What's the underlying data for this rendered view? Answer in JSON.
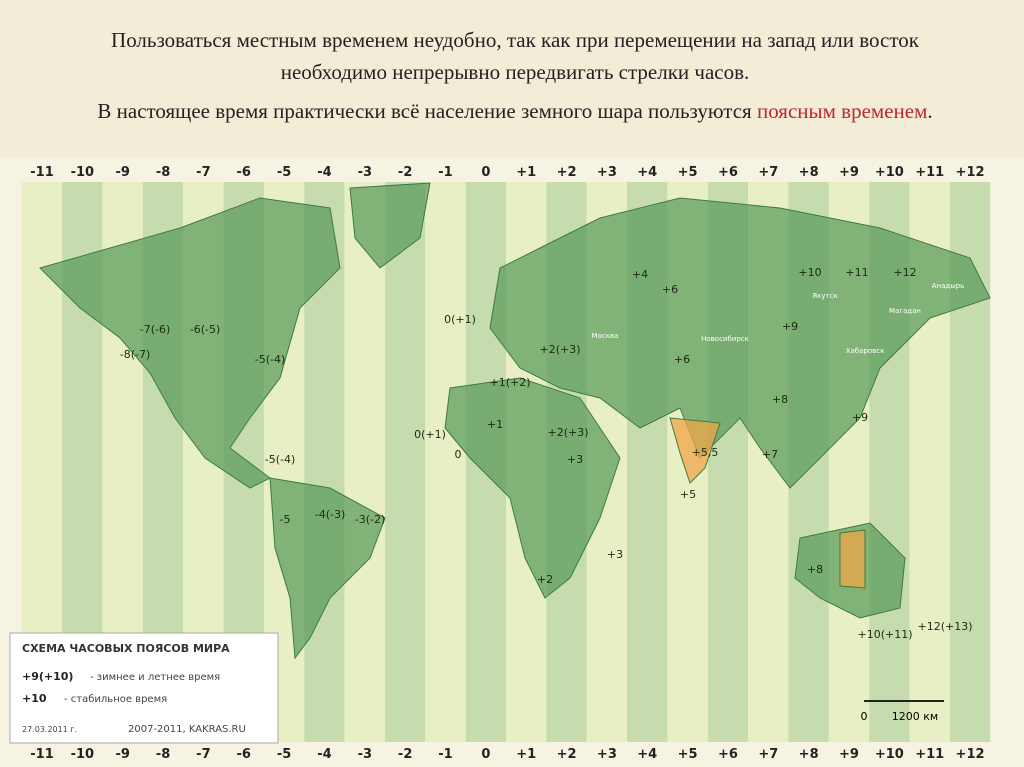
{
  "slide": {
    "paragraph_1": "Пользоваться местным временем неудобно, так как при перемещении на запад или восток необходимо непрерывно передвигать стрелки часов.",
    "paragraph_2": {
      "text": "В настоящее время практически всё население земного шара пользуются",
      "highlight": "поясным временем",
      "end": "."
    }
  },
  "map": {
    "zones": [
      "-11",
      "-10",
      "-9",
      "-8",
      "-7",
      "-6",
      "-5",
      "-4",
      "-3",
      "-2",
      "-1",
      "0",
      "+1",
      "+2",
      "+3",
      "+4",
      "+5",
      "+6",
      "+7",
      "+8",
      "+9",
      "+10",
      "+11",
      "+12"
    ],
    "labels": [
      "-7(-6)",
      "-6(-5)",
      "-8(-7)",
      "-5(-4)",
      "-5(-4)",
      "-5",
      "-4(-3)",
      "-3(-2)",
      "0(+1)",
      "0(+1)",
      "0",
      "+1",
      "+1(+2)",
      "+2(+3)",
      "+2(+3)",
      "+2",
      "+3",
      "+3",
      "+4",
      "+5",
      "+5,5",
      "+6",
      "+6",
      "+7",
      "+8",
      "+8",
      "+9",
      "+9",
      "+10",
      "+11",
      "+12",
      "+10(+11)",
      "+12(+13)",
      "Москва",
      "Якутск",
      "Магадан",
      "Анадырь",
      "Хабаровск",
      "Новосибирск"
    ],
    "legend": {
      "title": "СХЕМА ЧАСОВЫХ ПОЯСОВ МИРА",
      "items": [
        {
          "label": "+9(+10)",
          "text": "- зимнее и летнее время"
        },
        {
          "label": "+10",
          "text": "- стабильное время"
        }
      ],
      "date": "27.03.2011 г.",
      "credit": "2007-2011, KAKRAS.RU",
      "scale": [
        "0",
        "1200 км"
      ]
    }
  }
}
